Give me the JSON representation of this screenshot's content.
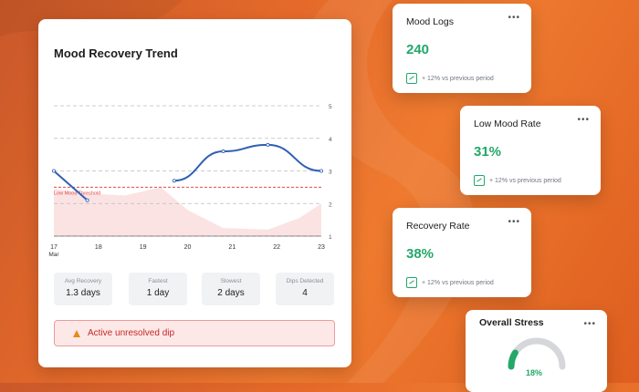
{
  "trend_card": {
    "title": "Mood Recovery Trend",
    "threshold_label": "Low Mood Threshold",
    "stats": [
      {
        "label": "Avg Recovery",
        "value": "1.3 days"
      },
      {
        "label": "Fastest",
        "value": "1 day"
      },
      {
        "label": "Slowest",
        "value": "2 days"
      },
      {
        "label": "Dips Detected",
        "value": "4"
      }
    ],
    "alert_text": "Active unresolved dip",
    "alert_icon": "warning-icon"
  },
  "chart_data": {
    "type": "line",
    "title": "Mood Recovery Trend",
    "x": [
      "17\nMar",
      "18",
      "19",
      "20",
      "21",
      "22",
      "23"
    ],
    "x_labels": [
      "17",
      "18",
      "19",
      "20",
      "21",
      "22",
      "23"
    ],
    "x_sub_label": "Mar",
    "y_ticks": [
      1,
      2,
      3,
      4,
      5
    ],
    "ylim": [
      1,
      5
    ],
    "threshold": 2.5,
    "series": [
      {
        "segment": 1,
        "points": [
          [
            0,
            3.0
          ],
          [
            0.75,
            2.1
          ]
        ]
      },
      {
        "segment": 2,
        "points": [
          [
            2.7,
            2.7
          ],
          [
            3.8,
            3.6
          ],
          [
            4.8,
            3.8
          ],
          [
            6.0,
            3.0
          ]
        ]
      }
    ],
    "area": [
      [
        0,
        2.45
      ],
      [
        0.8,
        2.3
      ],
      [
        1.6,
        2.25
      ],
      [
        2.4,
        2.5
      ],
      [
        3.0,
        1.8
      ],
      [
        3.8,
        1.25
      ],
      [
        4.8,
        1.2
      ],
      [
        5.5,
        1.55
      ],
      [
        6.0,
        2.0
      ]
    ],
    "colors": {
      "line": "#2f5fb3",
      "threshold": "#e04a4a",
      "area": "#fbe3e3",
      "grid": "#b9bcc2"
    }
  },
  "metrics": [
    {
      "title": "Mood Logs",
      "value": "240",
      "trend": "+ 12% vs previous period",
      "more": "•••"
    },
    {
      "title": "Low Mood Rate",
      "value": "31%",
      "trend": "+ 12% vs previous period",
      "more": "•••"
    },
    {
      "title": "Recovery Rate",
      "value": "38%",
      "trend": "+ 12% vs previous period",
      "more": "•••"
    }
  ],
  "stress": {
    "title": "Overall Stress",
    "value": "18%",
    "fraction": 0.18,
    "more": "•••",
    "colors": {
      "active": "#23a869",
      "track": "#d5d7db"
    }
  }
}
